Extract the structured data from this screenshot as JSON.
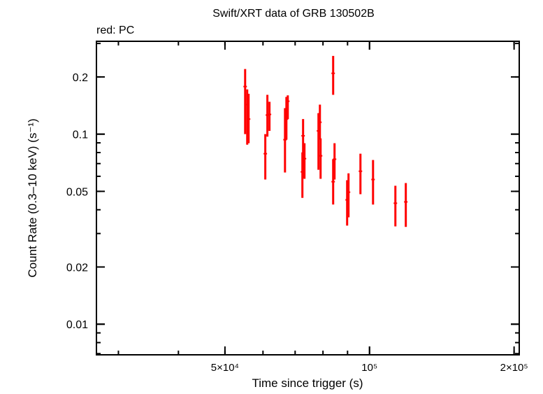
{
  "chart_data": {
    "type": "scatter",
    "title": "Swift/XRT data of GRB 130502B",
    "subtitle": "red: PC",
    "xlabel": "Time since trigger (s)",
    "ylabel": "Count Rate (0.3–10 keV) (s⁻¹)",
    "xscale": "log",
    "yscale": "log",
    "xlim": [
      27000,
      205000
    ],
    "ylim": [
      0.0069,
      0.308
    ],
    "grid": false,
    "x_ticks": [
      {
        "value": 50000,
        "label": "5×10⁴"
      },
      {
        "value": 100000,
        "label": "10⁵"
      },
      {
        "value": 200000,
        "label": "2×10⁵"
      }
    ],
    "y_ticks": [
      {
        "value": 0.2,
        "label": "0.2"
      },
      {
        "value": 0.1,
        "label": "0.1"
      },
      {
        "value": 0.05,
        "label": "0.05"
      },
      {
        "value": 0.02,
        "label": "0.02"
      },
      {
        "value": 0.01,
        "label": "0.01"
      }
    ],
    "series": [
      {
        "color": "#ff0000",
        "points": [
          {
            "x": 55080,
            "y": 0.178,
            "ylo": 0.1,
            "yhi": 0.22
          },
          {
            "x": 55630,
            "y": 0.143,
            "ylo": 0.088,
            "yhi": 0.172
          },
          {
            "x": 56000,
            "y": 0.12,
            "ylo": 0.0896,
            "yhi": 0.163
          },
          {
            "x": 60670,
            "y": 0.0789,
            "ylo": 0.0577,
            "yhi": 0.1
          },
          {
            "x": 61280,
            "y": 0.126,
            "ylo": 0.097,
            "yhi": 0.161
          },
          {
            "x": 61900,
            "y": 0.127,
            "ylo": 0.104,
            "yhi": 0.148
          },
          {
            "x": 66680,
            "y": 0.0935,
            "ylo": 0.0628,
            "yhi": 0.137
          },
          {
            "x": 67130,
            "y": 0.12,
            "ylo": 0.0935,
            "yhi": 0.157
          },
          {
            "x": 67580,
            "y": 0.149,
            "ylo": 0.12,
            "yhi": 0.16
          },
          {
            "x": 72480,
            "y": 0.0633,
            "ylo": 0.0462,
            "yhi": 0.0802
          },
          {
            "x": 72720,
            "y": 0.098,
            "ylo": 0.0586,
            "yhi": 0.12
          },
          {
            "x": 73210,
            "y": 0.0743,
            "ylo": 0.0582,
            "yhi": 0.0896
          },
          {
            "x": 78290,
            "y": 0.104,
            "ylo": 0.0649,
            "yhi": 0.129
          },
          {
            "x": 78830,
            "y": 0.1155,
            "ylo": 0.0935,
            "yhi": 0.143
          },
          {
            "x": 79090,
            "y": 0.0769,
            "ylo": 0.0582,
            "yhi": 0.095
          },
          {
            "x": 84000,
            "y": 0.209,
            "ylo": 0.161,
            "yhi": 0.258
          },
          {
            "x": 84000,
            "y": 0.0562,
            "ylo": 0.0426,
            "yhi": 0.0738
          },
          {
            "x": 84560,
            "y": 0.0738,
            "ylo": 0.0577,
            "yhi": 0.0896
          },
          {
            "x": 89820,
            "y": 0.0451,
            "ylo": 0.033,
            "yhi": 0.0572
          },
          {
            "x": 90420,
            "y": 0.0495,
            "ylo": 0.0365,
            "yhi": 0.0622
          },
          {
            "x": 95740,
            "y": 0.0638,
            "ylo": 0.0483,
            "yhi": 0.0789
          },
          {
            "x": 101700,
            "y": 0.0577,
            "ylo": 0.0426,
            "yhi": 0.0731
          },
          {
            "x": 113200,
            "y": 0.0433,
            "ylo": 0.0327,
            "yhi": 0.0535
          },
          {
            "x": 119000,
            "y": 0.044,
            "ylo": 0.0325,
            "yhi": 0.0553
          }
        ]
      }
    ]
  }
}
